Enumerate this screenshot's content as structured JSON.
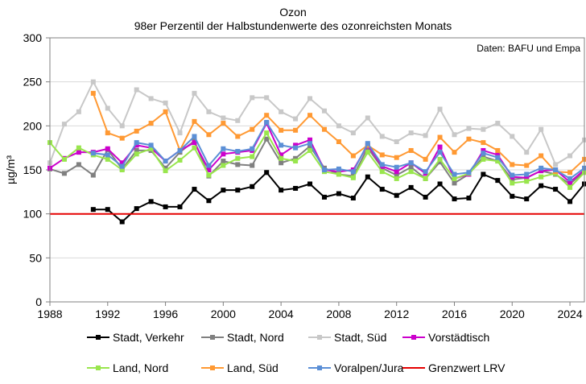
{
  "chart_data": {
    "type": "line",
    "title": "Ozon",
    "subtitle": "98er Perzentil der Halbstundenwerte des ozonreichsten Monats",
    "source": "Daten: BAFU und Empa",
    "xlabel": "",
    "ylabel": "µg/m³",
    "xlim": [
      1988,
      2025
    ],
    "ylim": [
      0,
      300
    ],
    "x_ticks": [
      1988,
      1992,
      1996,
      2000,
      2004,
      2008,
      2012,
      2016,
      2020,
      2024
    ],
    "y_ticks": [
      0,
      50,
      100,
      150,
      200,
      250,
      300
    ],
    "grid": "horizontal",
    "legend_position": "bottom",
    "x": [
      1988,
      1989,
      1990,
      1991,
      1992,
      1993,
      1994,
      1995,
      1996,
      1997,
      1998,
      1999,
      2000,
      2001,
      2002,
      2003,
      2004,
      2005,
      2006,
      2007,
      2008,
      2009,
      2010,
      2011,
      2012,
      2013,
      2014,
      2015,
      2016,
      2017,
      2018,
      2019,
      2020,
      2021,
      2022,
      2023,
      2024,
      2025
    ],
    "series": [
      {
        "name": "Stadt, Verkehr",
        "color": "#000000",
        "marker": "square",
        "values": [
          null,
          null,
          null,
          105,
          105,
          91,
          106,
          114,
          108,
          108,
          128,
          115,
          127,
          127,
          131,
          147,
          127,
          129,
          134,
          119,
          123,
          118,
          142,
          128,
          121,
          130,
          119,
          134,
          117,
          118,
          145,
          138,
          120,
          117,
          132,
          128,
          114,
          134
        ]
      },
      {
        "name": "Stadt, Nord",
        "color": "#808080",
        "marker": "square",
        "values": [
          151,
          146,
          156,
          144,
          173,
          151,
          172,
          172,
          152,
          170,
          183,
          143,
          160,
          156,
          155,
          185,
          158,
          163,
          177,
          152,
          145,
          143,
          175,
          152,
          144,
          153,
          140,
          159,
          135,
          145,
          165,
          160,
          139,
          141,
          149,
          145,
          134,
          148
        ]
      },
      {
        "name": "Stadt, Süd",
        "color": "#c8c8c8",
        "marker": "square",
        "values": [
          158,
          202,
          216,
          250,
          220,
          200,
          241,
          231,
          226,
          192,
          237,
          216,
          209,
          206,
          232,
          232,
          216,
          208,
          231,
          217,
          200,
          192,
          209,
          188,
          182,
          192,
          189,
          219,
          190,
          197,
          196,
          203,
          188,
          170,
          196,
          156,
          166,
          184
        ]
      },
      {
        "name": "Vorstädtisch",
        "color": "#cc00cc",
        "marker": "square",
        "values": [
          152,
          163,
          170,
          170,
          174,
          158,
          178,
          175,
          160,
          172,
          181,
          150,
          168,
          170,
          172,
          203,
          167,
          178,
          184,
          150,
          148,
          150,
          178,
          154,
          148,
          158,
          146,
          176,
          140,
          145,
          172,
          167,
          142,
          141,
          149,
          150,
          136,
          150
        ]
      },
      {
        "name": "Land, Nord",
        "color": "#99e64d",
        "marker": "square",
        "values": [
          181,
          162,
          175,
          167,
          162,
          150,
          168,
          174,
          149,
          161,
          175,
          144,
          155,
          163,
          165,
          192,
          163,
          160,
          172,
          148,
          145,
          141,
          170,
          148,
          140,
          148,
          140,
          162,
          140,
          146,
          162,
          160,
          135,
          137,
          142,
          146,
          130,
          147
        ]
      },
      {
        "name": "Land, Süd",
        "color": "#ff9933",
        "marker": "square",
        "values": [
          null,
          null,
          null,
          237,
          192,
          186,
          194,
          203,
          216,
          172,
          205,
          190,
          203,
          188,
          196,
          212,
          195,
          195,
          212,
          196,
          182,
          166,
          178,
          167,
          164,
          172,
          162,
          187,
          170,
          185,
          181,
          172,
          156,
          155,
          166,
          148,
          147,
          162
        ]
      },
      {
        "name": "Voralpen/Jura",
        "color": "#5b8fd6",
        "marker": "square",
        "values": [
          null,
          null,
          null,
          169,
          167,
          154,
          181,
          178,
          160,
          172,
          188,
          155,
          174,
          171,
          174,
          204,
          178,
          175,
          180,
          150,
          151,
          148,
          180,
          156,
          153,
          158,
          148,
          170,
          145,
          147,
          169,
          164,
          144,
          145,
          152,
          150,
          140,
          152
        ]
      },
      {
        "name": "Grenzwert LRV",
        "color": "#e60000",
        "marker": "none",
        "values": [
          100,
          100,
          100,
          100,
          100,
          100,
          100,
          100,
          100,
          100,
          100,
          100,
          100,
          100,
          100,
          100,
          100,
          100,
          100,
          100,
          100,
          100,
          100,
          100,
          100,
          100,
          100,
          100,
          100,
          100,
          100,
          100,
          100,
          100,
          100,
          100,
          100,
          100
        ]
      }
    ]
  }
}
